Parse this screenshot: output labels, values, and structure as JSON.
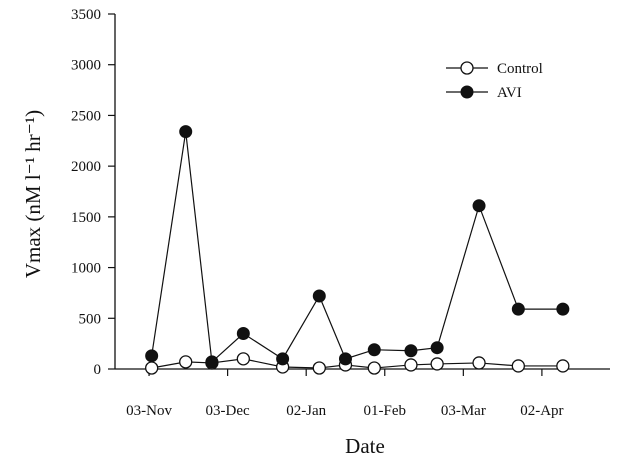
{
  "chart_data": {
    "type": "line",
    "xlabel": "Date",
    "ylabel": "Vmax (nM l⁻¹ hr⁻¹)",
    "ylim": [
      0,
      3500
    ],
    "yticks": [
      0,
      500,
      1000,
      1500,
      2000,
      2500,
      3000,
      3500
    ],
    "x_tick_labels": [
      "03-Nov",
      "03-Dec",
      "02-Jan",
      "01-Feb",
      "03-Mar",
      "02-Apr"
    ],
    "x_tick_days": [
      0,
      30,
      60,
      90,
      120,
      150
    ],
    "xlim_days": [
      -13,
      176
    ],
    "legend_position": "top-right",
    "grid": false,
    "series": [
      {
        "name": "Control",
        "marker": "open-circle",
        "x_days": [
          1,
          14,
          24,
          36,
          51,
          65,
          75,
          86,
          100,
          110,
          126,
          141,
          158
        ],
        "values": [
          10,
          70,
          60,
          100,
          20,
          10,
          40,
          10,
          40,
          50,
          60,
          30,
          30
        ]
      },
      {
        "name": "AVI",
        "marker": "filled-circle",
        "x_days": [
          1,
          14,
          24,
          36,
          51,
          65,
          75,
          86,
          100,
          110,
          126,
          141,
          158
        ],
        "values": [
          130,
          2340,
          70,
          350,
          100,
          720,
          100,
          190,
          180,
          210,
          1610,
          590,
          590
        ]
      }
    ]
  }
}
